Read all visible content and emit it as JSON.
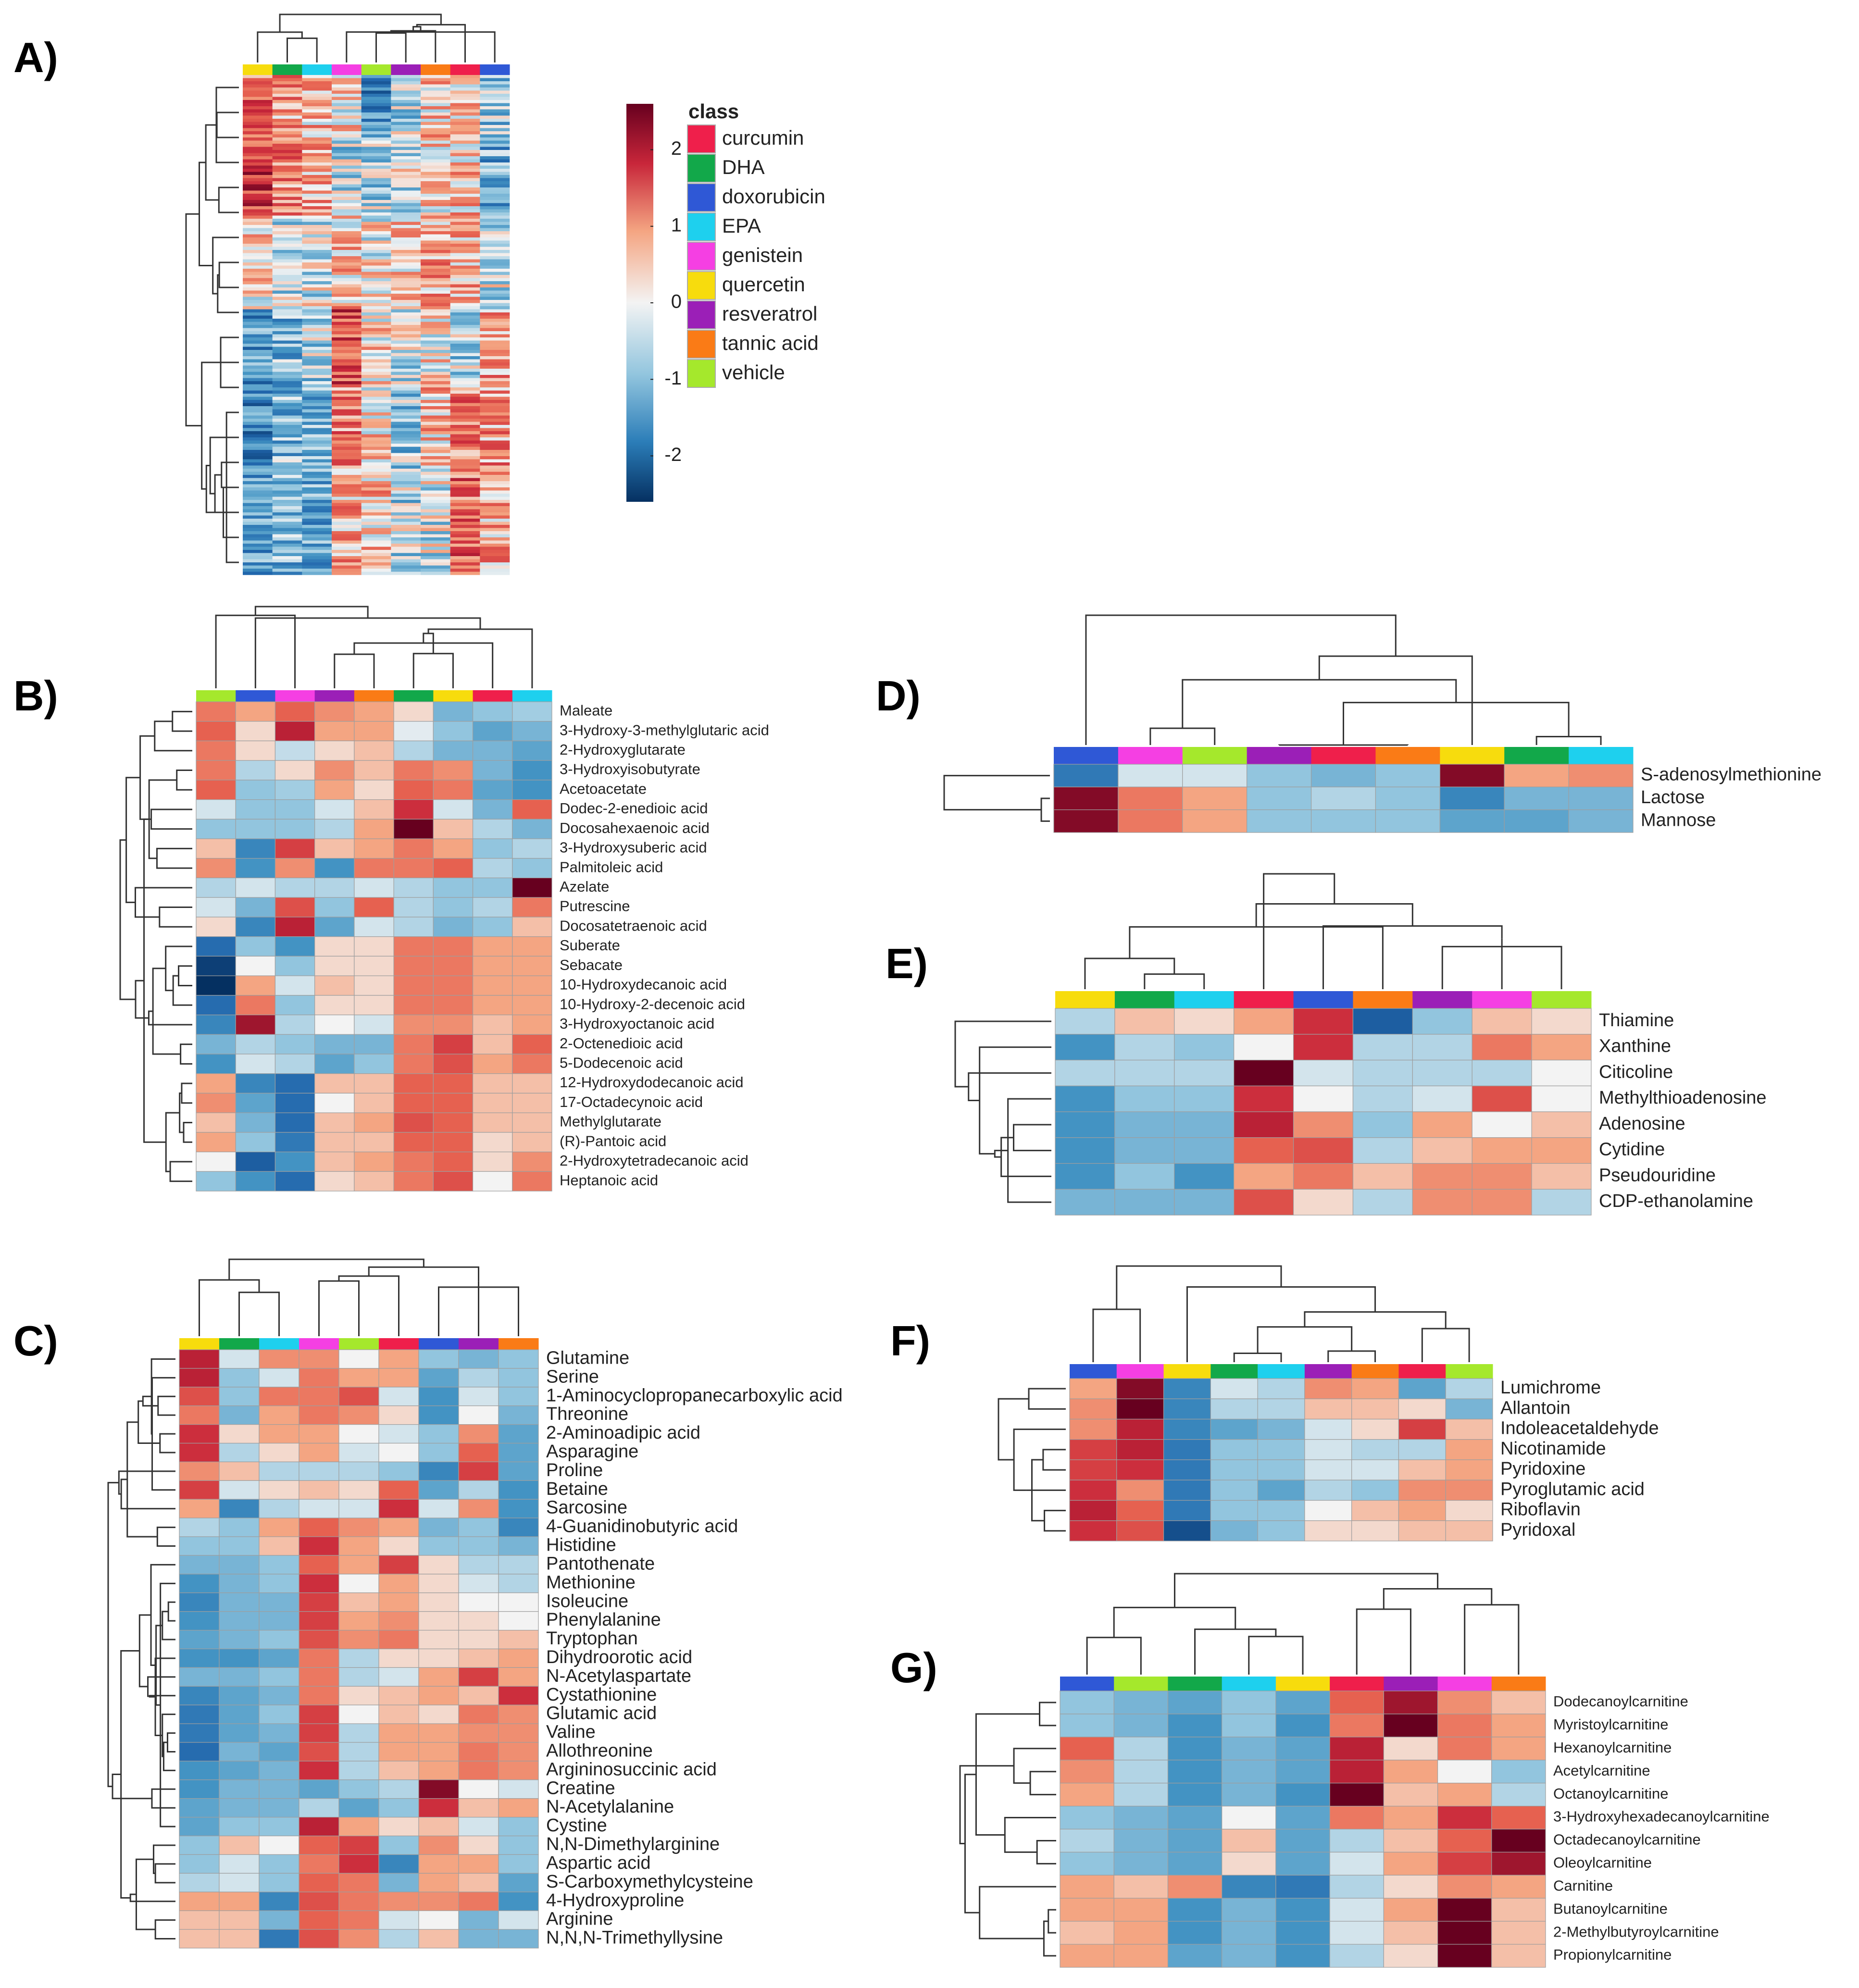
{
  "figure": {
    "panel_labels": [
      "A)",
      "B)",
      "C)",
      "D)",
      "E)",
      "F)",
      "G)"
    ],
    "legend_title": "class",
    "colorbar_ticks": [
      "2",
      "1",
      "0",
      "-1",
      "-2"
    ],
    "colorbar_values": [
      2,
      1,
      0,
      -1,
      -2
    ],
    "colorbar_range": [
      -2.6,
      2.6
    ]
  },
  "classes": [
    {
      "name": "curcumin",
      "color": "#ef1f4b"
    },
    {
      "name": "DHA",
      "color": "#12a84a"
    },
    {
      "name": "doxorubicin",
      "color": "#2f58d6"
    },
    {
      "name": "EPA",
      "color": "#1ed0ee"
    },
    {
      "name": "genistein",
      "color": "#f53fe3"
    },
    {
      "name": "quercetin",
      "color": "#f7dc0d"
    },
    {
      "name": "resveratrol",
      "color": "#9b1fb7"
    },
    {
      "name": "tannic acid",
      "color": "#fa7b16"
    },
    {
      "name": "vehicle",
      "color": "#a5e82c"
    }
  ],
  "chart_data": [
    {
      "panel": "A)",
      "type": "heatmap",
      "approx_rows": 160,
      "columns": [
        "quercetin",
        "DHA",
        "EPA",
        "genistein",
        "vehicle",
        "resveratrol",
        "tannic acid",
        "curcumin",
        "doxorubicin"
      ]
    },
    {
      "panel": "B)",
      "type": "heatmap",
      "columns": [
        "vehicle",
        "doxorubicin",
        "genistein",
        "resveratrol",
        "tannic acid",
        "DHA",
        "quercetin",
        "curcumin",
        "EPA"
      ],
      "rows": [
        "Maleate",
        "3-Hydroxy-3-methylglutaric acid",
        "2-Hydroxyglutarate",
        "3-Hydroxyisobutyrate",
        "Acetoacetate",
        "Dodec-2-enedioic acid",
        "Docosahexaenoic acid",
        "3-Hydroxysuberic acid",
        "Palmitoleic acid",
        "Azelate",
        "Putrescine",
        "Docosatetraenoic acid",
        "Suberate",
        "Sebacate",
        "10-Hydroxydecanoic acid",
        "10-Hydroxy-2-decenoic acid",
        "3-Hydroxyoctanoic acid",
        "2-Octenedioic acid",
        "5-Dodecenoic acid",
        "12-Hydroxydodecanoic acid",
        "17-Octadecynoic acid",
        "Methylglutarate",
        "(R)-Pantoic acid",
        "2-Hydroxytetradecanoic acid",
        "Heptanoic acid"
      ],
      "values": [
        [
          1.0,
          0.6,
          1.2,
          0.8,
          0.6,
          0.2,
          -0.8,
          -0.6,
          -0.5
        ],
        [
          1.2,
          0.2,
          2.0,
          0.6,
          0.6,
          -0.1,
          -0.6,
          -1.0,
          -0.8
        ],
        [
          1.0,
          0.2,
          -0.3,
          0.2,
          0.4,
          -0.4,
          -0.8,
          -0.8,
          -1.0
        ],
        [
          1.0,
          -0.4,
          0.2,
          0.8,
          0.4,
          1.0,
          0.8,
          -0.8,
          -1.2
        ],
        [
          1.2,
          -0.6,
          -0.5,
          0.6,
          0.2,
          1.2,
          1.0,
          -1.0,
          -1.2
        ],
        [
          -0.2,
          -0.6,
          -0.6,
          -0.2,
          0.4,
          1.8,
          -0.2,
          -0.8,
          1.2
        ],
        [
          -0.6,
          -0.6,
          -0.6,
          -0.4,
          0.6,
          2.6,
          0.4,
          -0.4,
          -0.8
        ],
        [
          0.4,
          -1.4,
          1.6,
          0.4,
          0.6,
          1.0,
          0.6,
          -0.6,
          -0.4
        ],
        [
          0.8,
          -1.2,
          0.8,
          -1.2,
          1.0,
          1.0,
          1.2,
          -0.4,
          -0.6
        ],
        [
          -0.4,
          -0.2,
          -0.4,
          -0.4,
          -0.2,
          -0.4,
          -0.6,
          -0.6,
          2.6
        ],
        [
          -0.2,
          -0.8,
          1.4,
          -0.6,
          1.2,
          -0.4,
          -0.6,
          -0.4,
          1.0
        ],
        [
          0.2,
          -1.4,
          2.0,
          -1.0,
          -0.2,
          -0.4,
          -0.8,
          -0.6,
          0.4
        ],
        [
          -1.8,
          -0.6,
          -1.2,
          0.2,
          0.2,
          1.0,
          1.0,
          0.6,
          0.6
        ],
        [
          -2.4,
          0.0,
          -0.6,
          0.2,
          0.2,
          1.0,
          1.0,
          0.6,
          0.6
        ],
        [
          -2.6,
          0.6,
          -0.2,
          0.4,
          0.2,
          1.0,
          1.0,
          0.6,
          0.6
        ],
        [
          -1.8,
          1.0,
          -0.6,
          0.2,
          0.2,
          1.0,
          1.0,
          0.6,
          0.6
        ],
        [
          -1.4,
          2.2,
          -0.4,
          0.0,
          -0.2,
          0.8,
          0.8,
          0.4,
          0.6
        ],
        [
          -0.8,
          -0.4,
          -0.6,
          -0.8,
          -0.8,
          1.0,
          1.6,
          0.4,
          1.2
        ],
        [
          -1.2,
          -0.2,
          -0.4,
          -1.0,
          -0.6,
          1.0,
          1.4,
          0.6,
          1.0
        ],
        [
          0.6,
          -1.4,
          -1.8,
          0.4,
          0.4,
          1.2,
          1.2,
          0.4,
          0.4
        ],
        [
          0.8,
          -1.0,
          -1.8,
          0.0,
          0.4,
          1.2,
          1.2,
          0.4,
          0.4
        ],
        [
          0.4,
          -0.8,
          -1.8,
          0.4,
          0.6,
          1.4,
          1.2,
          0.4,
          0.4
        ],
        [
          0.6,
          -0.6,
          -1.6,
          0.4,
          0.4,
          1.2,
          1.2,
          0.2,
          0.4
        ],
        [
          0.0,
          -2.0,
          -1.2,
          0.4,
          0.6,
          1.0,
          1.2,
          0.2,
          0.8
        ],
        [
          -0.6,
          -1.2,
          -1.8,
          0.2,
          0.4,
          1.0,
          1.4,
          0.0,
          1.0
        ]
      ]
    },
    {
      "panel": "C)",
      "type": "heatmap",
      "columns": [
        "quercetin",
        "DHA",
        "EPA",
        "genistein",
        "vehicle",
        "curcumin",
        "doxorubicin",
        "resveratrol",
        "tannic acid"
      ],
      "rows": [
        "Glutamine",
        "Serine",
        "1-Aminocyclopropanecarboxylic acid",
        "Threonine",
        "2-Aminoadipic acid",
        "Asparagine",
        "Proline",
        "Betaine",
        "Sarcosine",
        "4-Guanidinobutyric acid",
        "Histidine",
        "Pantothenate",
        "Methionine",
        "Isoleucine",
        "Phenylalanine",
        "Tryptophan",
        "Dihydroorotic acid",
        "N-Acetylaspartate",
        "Cystathionine",
        "Glutamic acid",
        "Valine",
        "Allothreonine",
        "Argininosuccinic acid",
        "Creatine",
        "N-Acetylalanine",
        "Cystine",
        "N,N-Dimethylarginine",
        "Aspartic acid",
        "S-Carboxymethylcysteine",
        "4-Hydroxyproline",
        "Arginine",
        "N,N,N-Trimethyllysine"
      ],
      "values": [
        [
          2.0,
          -0.2,
          0.8,
          0.8,
          0.0,
          0.6,
          -0.6,
          -0.8,
          -0.6
        ],
        [
          2.0,
          -0.6,
          -0.2,
          1.0,
          0.6,
          0.6,
          -1.0,
          -0.4,
          -0.6
        ],
        [
          1.4,
          -0.6,
          1.0,
          1.0,
          1.4,
          -0.2,
          -1.2,
          -0.2,
          -0.6
        ],
        [
          1.0,
          -0.8,
          0.6,
          1.0,
          0.8,
          0.2,
          -1.2,
          0.0,
          -0.8
        ],
        [
          1.8,
          0.2,
          0.6,
          0.6,
          0.0,
          -0.2,
          -0.6,
          0.8,
          -1.0
        ],
        [
          1.8,
          -0.4,
          0.2,
          0.6,
          -0.2,
          0.0,
          -0.6,
          1.2,
          -1.0
        ],
        [
          0.8,
          0.4,
          -0.4,
          -0.4,
          -0.4,
          -0.6,
          -1.4,
          1.6,
          -1.0
        ],
        [
          1.6,
          -0.2,
          0.2,
          0.4,
          0.2,
          1.2,
          -1.0,
          -0.4,
          -1.2
        ],
        [
          0.6,
          -1.4,
          -0.4,
          -0.2,
          -0.2,
          1.8,
          -0.2,
          0.8,
          -1.2
        ],
        [
          -0.4,
          -0.6,
          0.6,
          1.2,
          0.8,
          0.6,
          -0.8,
          -0.6,
          -1.4
        ],
        [
          -0.6,
          -0.6,
          0.4,
          1.8,
          0.6,
          0.2,
          -0.6,
          -0.6,
          -0.8
        ],
        [
          -0.8,
          -0.8,
          -0.6,
          1.2,
          0.6,
          1.6,
          0.2,
          -0.4,
          -0.4
        ],
        [
          -1.2,
          -0.8,
          -0.6,
          1.8,
          0.0,
          0.6,
          0.2,
          -0.2,
          -0.4
        ],
        [
          -1.4,
          -0.8,
          -0.8,
          1.6,
          0.4,
          0.6,
          0.2,
          0.0,
          0.0
        ],
        [
          -1.2,
          -0.8,
          -0.8,
          1.6,
          0.6,
          0.8,
          0.2,
          0.2,
          0.0
        ],
        [
          -1.0,
          -0.8,
          -0.6,
          1.4,
          0.8,
          1.0,
          0.2,
          0.2,
          0.4
        ],
        [
          -1.2,
          -1.2,
          -1.0,
          1.0,
          -0.4,
          0.2,
          0.2,
          0.4,
          0.6
        ],
        [
          -0.8,
          -0.8,
          -0.6,
          1.0,
          -0.4,
          -0.2,
          0.6,
          1.6,
          0.6
        ],
        [
          -1.4,
          -1.0,
          -0.8,
          1.0,
          0.2,
          0.4,
          0.6,
          0.4,
          1.8
        ],
        [
          -1.6,
          -1.0,
          -0.6,
          1.6,
          0.0,
          0.4,
          0.2,
          1.0,
          0.8
        ],
        [
          -1.6,
          -1.0,
          -0.8,
          1.6,
          -0.4,
          0.6,
          0.6,
          0.8,
          0.8
        ],
        [
          -1.8,
          -0.8,
          -1.0,
          1.4,
          -0.4,
          0.6,
          0.6,
          1.0,
          0.8
        ],
        [
          -1.2,
          -1.0,
          -0.8,
          1.8,
          -0.4,
          0.4,
          0.6,
          1.0,
          0.8
        ],
        [
          -1.2,
          -0.8,
          -0.8,
          -1.0,
          -0.6,
          -0.4,
          2.4,
          0.0,
          -0.2
        ],
        [
          -1.0,
          -0.8,
          -0.8,
          -0.4,
          -1.0,
          -0.6,
          1.8,
          0.4,
          0.6
        ],
        [
          -1.0,
          -0.6,
          -0.6,
          2.0,
          0.6,
          0.2,
          0.4,
          -0.2,
          -0.6
        ],
        [
          -0.6,
          0.4,
          0.0,
          1.2,
          1.6,
          -0.6,
          0.8,
          0.2,
          -0.6
        ],
        [
          -0.6,
          -0.2,
          -0.6,
          1.0,
          1.8,
          -1.4,
          0.6,
          0.6,
          -0.6
        ],
        [
          -0.4,
          -0.2,
          -0.6,
          1.2,
          1.0,
          -0.8,
          0.6,
          0.4,
          -1.0
        ],
        [
          0.6,
          0.6,
          -1.4,
          1.4,
          1.0,
          0.8,
          0.8,
          1.0,
          -1.2
        ],
        [
          0.4,
          0.4,
          -0.8,
          1.2,
          1.0,
          -0.2,
          0.0,
          -0.8,
          -0.2
        ],
        [
          0.4,
          0.4,
          -1.6,
          1.4,
          0.8,
          -0.4,
          0.4,
          -0.8,
          -0.8
        ]
      ]
    },
    {
      "panel": "D)",
      "type": "heatmap",
      "columns": [
        "doxorubicin",
        "genistein",
        "vehicle",
        "resveratrol",
        "curcumin",
        "tannic acid",
        "quercetin",
        "DHA",
        "EPA"
      ],
      "rows": [
        "S-adenosylmethionine",
        "Lactose",
        "Mannose"
      ],
      "values": [
        [
          -1.6,
          -0.2,
          -0.2,
          -0.6,
          -0.8,
          -0.6,
          2.4,
          0.6,
          0.8
        ],
        [
          2.4,
          1.0,
          0.6,
          -0.6,
          -0.4,
          -0.6,
          -1.4,
          -0.8,
          -0.8
        ],
        [
          2.4,
          1.0,
          0.6,
          -0.6,
          -0.6,
          -0.6,
          -1.0,
          -1.0,
          -0.8
        ]
      ]
    },
    {
      "panel": "E)",
      "type": "heatmap",
      "columns": [
        "quercetin",
        "DHA",
        "EPA",
        "curcumin",
        "doxorubicin",
        "tannic acid",
        "resveratrol",
        "genistein",
        "vehicle"
      ],
      "rows": [
        "Thiamine",
        "Xanthine",
        "Citicoline",
        "Methylthioadenosine",
        "Adenosine",
        "Cytidine",
        "Pseudouridine",
        "CDP-ethanolamine"
      ],
      "values": [
        [
          -0.4,
          0.4,
          0.2,
          0.6,
          1.8,
          -2.0,
          -0.6,
          0.4,
          0.2
        ],
        [
          -1.2,
          -0.4,
          -0.6,
          0.0,
          1.8,
          -0.4,
          -0.4,
          1.0,
          0.6
        ],
        [
          -0.4,
          -0.4,
          -0.4,
          2.6,
          -0.2,
          -0.4,
          -0.4,
          -0.4,
          0.0
        ],
        [
          -1.2,
          -0.6,
          -0.6,
          1.8,
          0.0,
          -0.4,
          -0.2,
          1.4,
          0.0
        ],
        [
          -1.2,
          -0.8,
          -0.8,
          2.0,
          0.8,
          -0.6,
          0.6,
          0.0,
          0.4
        ],
        [
          -1.2,
          -0.8,
          -0.8,
          1.2,
          1.4,
          -0.4,
          0.4,
          0.6,
          0.6
        ],
        [
          -1.2,
          -0.6,
          -1.2,
          0.6,
          1.0,
          0.4,
          0.8,
          0.8,
          0.4
        ],
        [
          -0.8,
          -0.8,
          -0.8,
          1.4,
          0.2,
          -0.4,
          0.8,
          0.8,
          -0.4
        ]
      ]
    },
    {
      "panel": "F)",
      "type": "heatmap",
      "columns": [
        "doxorubicin",
        "genistein",
        "quercetin",
        "DHA",
        "EPA",
        "resveratrol",
        "tannic acid",
        "curcumin",
        "vehicle"
      ],
      "rows": [
        "Lumichrome",
        "Allantoin",
        "Indoleacetaldehyde",
        "Nicotinamide",
        "Pyridoxine",
        "Pyroglutamic acid",
        "Riboflavin",
        "Pyridoxal"
      ],
      "values": [
        [
          0.6,
          2.4,
          -1.4,
          -0.2,
          -0.4,
          0.8,
          0.6,
          -1.0,
          -0.4
        ],
        [
          0.8,
          2.6,
          -1.4,
          -0.4,
          -0.4,
          0.4,
          0.4,
          0.2,
          -0.8
        ],
        [
          0.8,
          2.0,
          -1.4,
          -1.0,
          -0.8,
          -0.2,
          0.2,
          1.6,
          0.4
        ],
        [
          1.6,
          2.0,
          -1.6,
          -0.6,
          -0.6,
          -0.2,
          -0.4,
          -0.4,
          0.6
        ],
        [
          1.6,
          1.8,
          -1.6,
          -0.6,
          -0.6,
          -0.2,
          -0.2,
          0.4,
          0.6
        ],
        [
          1.8,
          0.8,
          -1.6,
          -0.6,
          -1.0,
          -0.4,
          -0.6,
          0.8,
          0.8
        ],
        [
          2.0,
          1.2,
          -1.6,
          -0.6,
          -0.6,
          0.0,
          0.4,
          0.6,
          0.2
        ],
        [
          1.8,
          1.4,
          -2.2,
          -0.8,
          -0.6,
          0.2,
          0.2,
          0.4,
          0.4
        ]
      ]
    },
    {
      "panel": "G)",
      "type": "heatmap",
      "columns": [
        "doxorubicin",
        "vehicle",
        "DHA",
        "EPA",
        "quercetin",
        "curcumin",
        "resveratrol",
        "genistein",
        "tannic acid"
      ],
      "rows": [
        "Dodecanoylcarnitine",
        "Myristoylcarnitine",
        "Hexanoylcarnitine",
        "Acetylcarnitine",
        "Octanoylcarnitine",
        "3-Hydroxyhexadecanoylcarnitine",
        "Octadecanoylcarnitine",
        "Oleoylcarnitine",
        "Carnitine",
        "Butanoylcarnitine",
        "2-Methylbutyroylcarnitine",
        "Propionylcarnitine"
      ],
      "values": [
        [
          -0.6,
          -0.8,
          -1.0,
          -0.6,
          -1.0,
          1.2,
          2.2,
          0.8,
          0.4
        ],
        [
          -0.6,
          -0.8,
          -1.2,
          -0.6,
          -1.2,
          1.0,
          2.6,
          1.0,
          0.6
        ],
        [
          1.2,
          -0.4,
          -1.2,
          -0.8,
          -1.0,
          2.0,
          0.2,
          1.0,
          0.6
        ],
        [
          0.8,
          -0.4,
          -1.2,
          -0.8,
          -1.0,
          2.0,
          0.6,
          0.0,
          -0.6
        ],
        [
          0.6,
          -0.4,
          -1.2,
          -0.8,
          -1.2,
          2.6,
          0.4,
          0.6,
          -0.4
        ],
        [
          -0.6,
          -0.8,
          -1.0,
          0.0,
          -1.0,
          1.0,
          0.6,
          1.8,
          1.2
        ],
        [
          -0.4,
          -0.8,
          -1.0,
          0.4,
          -1.0,
          -0.4,
          0.4,
          1.2,
          2.6
        ],
        [
          -0.6,
          -0.8,
          -1.0,
          0.2,
          -1.0,
          -0.2,
          0.6,
          1.6,
          2.2
        ],
        [
          0.6,
          0.4,
          0.8,
          -1.4,
          -1.6,
          -0.4,
          0.2,
          0.8,
          0.6
        ],
        [
          0.6,
          0.6,
          -1.2,
          -0.8,
          -1.2,
          -0.2,
          0.6,
          2.6,
          0.4
        ],
        [
          0.4,
          0.6,
          -1.2,
          -0.8,
          -1.2,
          -0.2,
          0.4,
          2.6,
          0.4
        ],
        [
          0.6,
          0.6,
          -1.0,
          -0.8,
          -1.2,
          -0.4,
          0.2,
          2.6,
          0.4
        ]
      ]
    }
  ]
}
